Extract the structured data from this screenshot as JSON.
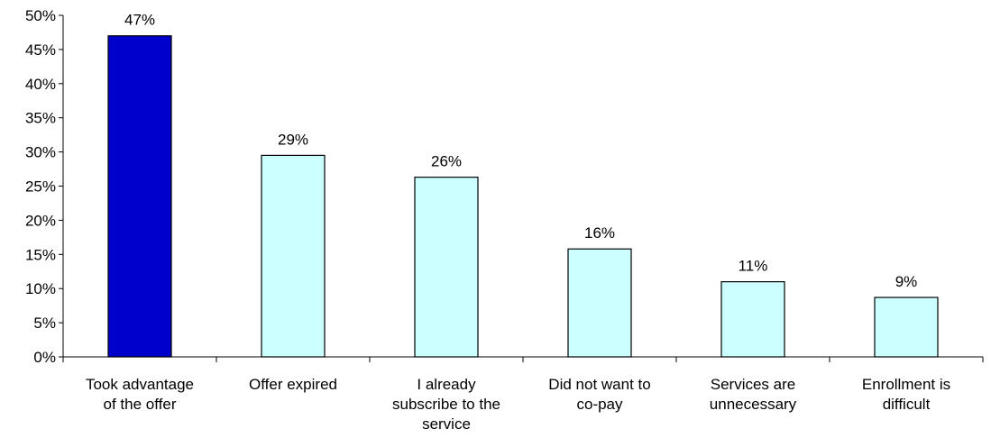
{
  "chart_data": {
    "type": "bar",
    "categories": [
      [
        "Took advantage",
        "of the offer"
      ],
      [
        "Offer expired"
      ],
      [
        "I already",
        "subscribe to the",
        "service"
      ],
      [
        "Did not want to",
        "co-pay"
      ],
      [
        "Services are",
        "unnecessary"
      ],
      [
        "Enrollment is",
        "difficult"
      ]
    ],
    "values": [
      47,
      29.5,
      26.3,
      15.8,
      11,
      8.7
    ],
    "data_labels": [
      "47%",
      "29%",
      "26%",
      "16%",
      "11%",
      "9%"
    ],
    "bar_colors": [
      "#0000cc",
      "#ccffff",
      "#ccffff",
      "#ccffff",
      "#ccffff",
      "#ccffff"
    ],
    "ylim": [
      0,
      50
    ],
    "yticks": [
      "0%",
      "5%",
      "10%",
      "15%",
      "20%",
      "25%",
      "30%",
      "35%",
      "40%",
      "45%",
      "50%"
    ],
    "grid": false,
    "legend": "none",
    "title": "",
    "xlabel": "",
    "ylabel": ""
  }
}
